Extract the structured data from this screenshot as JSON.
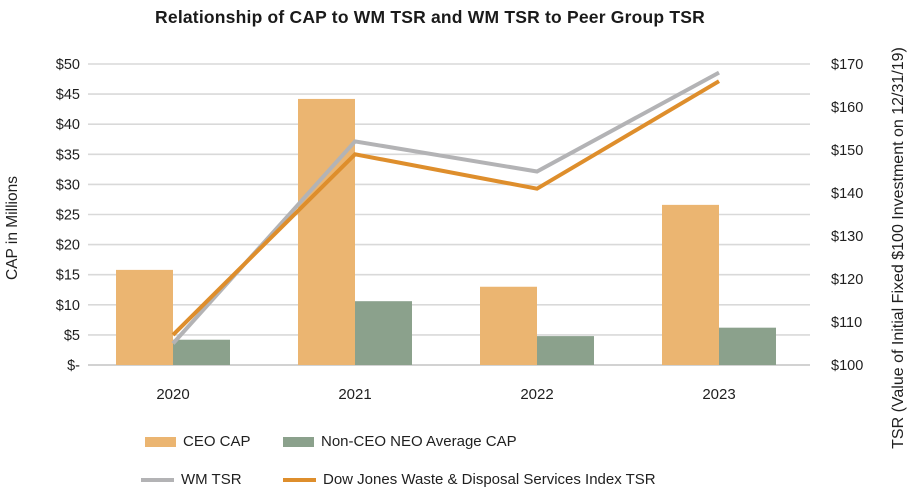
{
  "title": "Relationship of CAP to WM TSR and WM TSR to Peer Group TSR",
  "colors": {
    "ceo_cap_bar": "#EBB571",
    "non_ceo_cap_bar": "#8BA18C",
    "wm_tsr_line": "#B3B3B5",
    "peer_tsr_line": "#DE8E2C",
    "gridline": "#D9D9D9",
    "baseline": "#C4C4C4",
    "text": "#1f1f1f"
  },
  "chart_data": {
    "type": "combo-bar-line",
    "title": "Relationship of CAP to WM TSR and WM TSR to Peer Group TSR",
    "categories": [
      "2020",
      "2021",
      "2022",
      "2023"
    ],
    "bar_series": [
      {
        "name": "CEO CAP",
        "color": "#EBB571",
        "axis": "left",
        "values": [
          15.8,
          44.2,
          13.0,
          26.6
        ]
      },
      {
        "name": "Non-CEO NEO Average CAP",
        "color": "#8BA18C",
        "axis": "left",
        "values": [
          4.2,
          10.6,
          4.8,
          6.2
        ]
      }
    ],
    "line_series": [
      {
        "name": "WM TSR",
        "color": "#B3B3B5",
        "axis": "right",
        "values": [
          105,
          152,
          145,
          168
        ]
      },
      {
        "name": "Dow Jones Waste & Disposal Services Index TSR",
        "color": "#DE8E2C",
        "axis": "right",
        "values": [
          107,
          149,
          141,
          166
        ]
      }
    ],
    "left_axis": {
      "label": "CAP in Millions",
      "min": 0,
      "max": 50,
      "step": 5,
      "ticks": [
        "$50",
        "$45",
        "$40",
        "$35",
        "$30",
        "$25",
        "$20",
        "$15",
        "$10",
        "$5",
        "$-"
      ]
    },
    "right_axis": {
      "label": "TSR (Value of Initial Fixed $100 Investment on 12/31/19)",
      "min": 100,
      "max": 170,
      "step": 10,
      "ticks": [
        "$170",
        "$160",
        "$150",
        "$140",
        "$130",
        "$120",
        "$110",
        "$100"
      ]
    },
    "grid": true,
    "legend_position": "bottom"
  }
}
